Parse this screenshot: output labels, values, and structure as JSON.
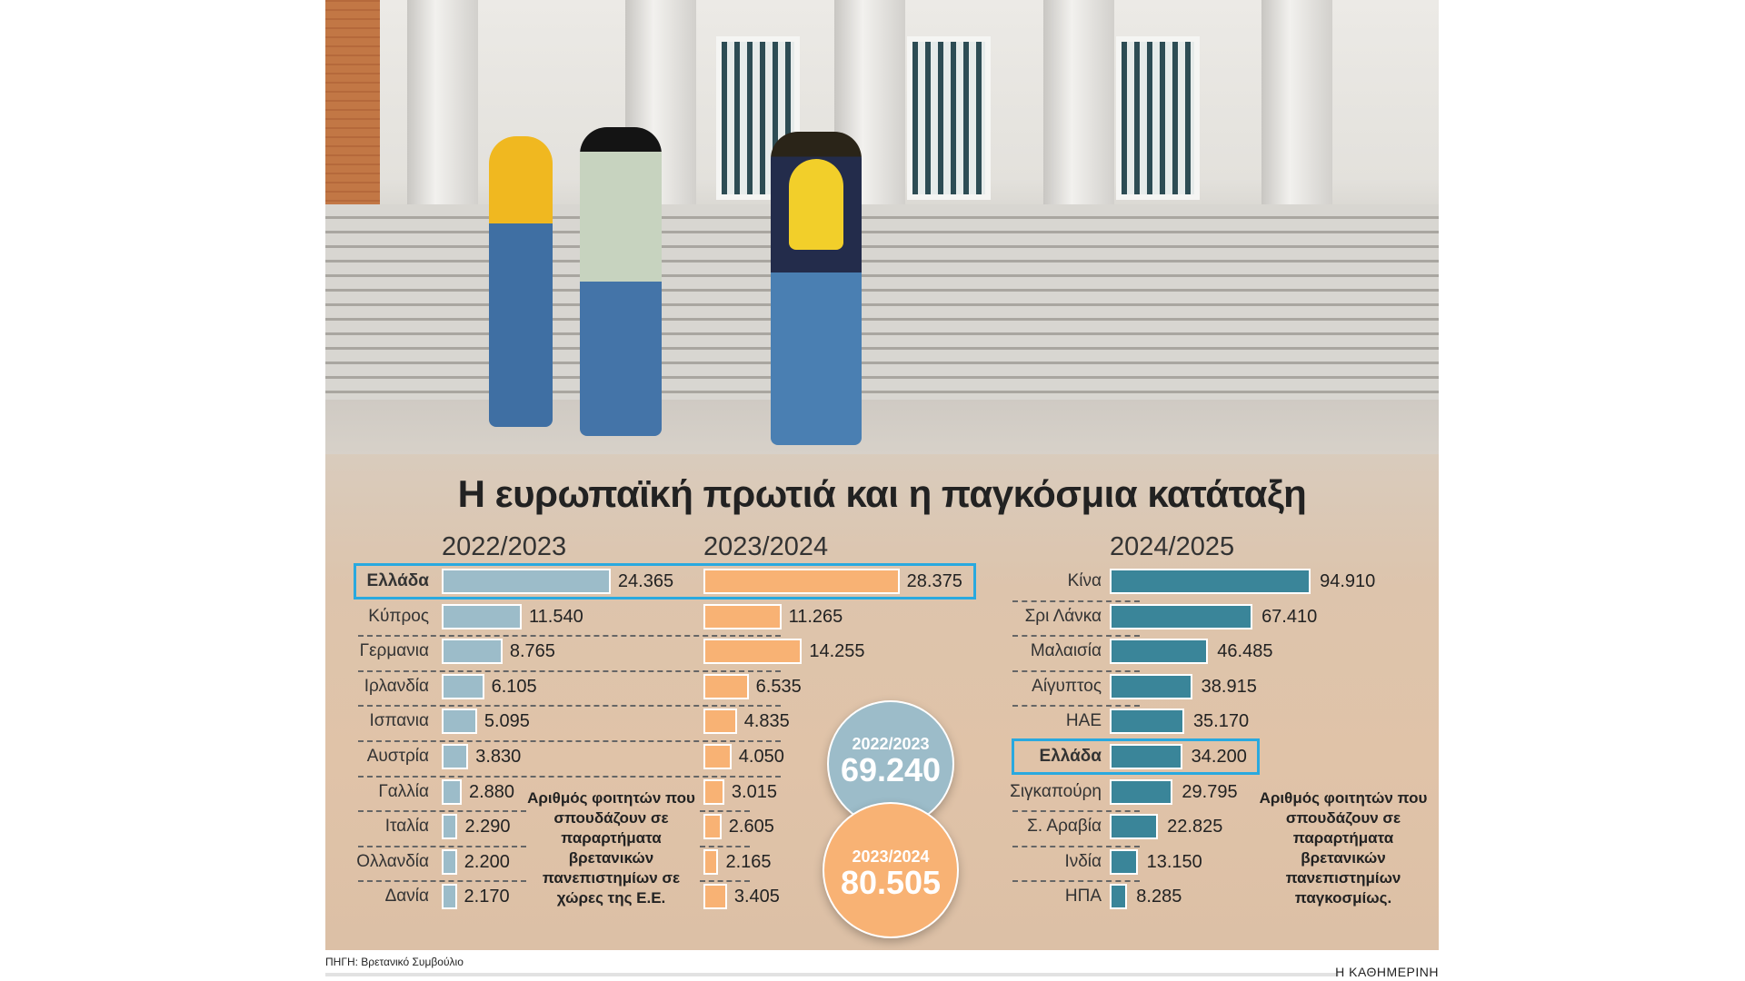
{
  "title": "Η ευρωπαϊκή πρωτιά και η παγκόσμια κατάταξη",
  "chart_data": [
    {
      "type": "bar",
      "orientation": "horizontal",
      "title": "2022/2023",
      "color": "#9cbcc9",
      "categories": [
        "Ελλάδα",
        "Κύπρος",
        "Γερμανία",
        "Ιρλανδία",
        "Ισπανία",
        "Αυστρία",
        "Γαλλία",
        "Ιταλία",
        "Ολλανδία",
        "Δανία"
      ],
      "values": [
        24365,
        11540,
        8765,
        6105,
        5095,
        3830,
        2880,
        2290,
        2200,
        2170
      ],
      "labels": [
        "24.365",
        "11.540",
        "8.765",
        "6.105",
        "5.095",
        "3.830",
        "2.880",
        "2.290",
        "2.200",
        "2.170"
      ],
      "highlight": "Ελλάδα"
    },
    {
      "type": "bar",
      "orientation": "horizontal",
      "title": "2023/2024",
      "color": "#f8b274",
      "categories": [
        "Ελλάδα",
        "Κύπρος",
        "Γερμανία",
        "Ιρλανδία",
        "Ισπανία",
        "Αυστρία",
        "Γαλλία",
        "Ιταλία",
        "Ολλανδία",
        "Δανία"
      ],
      "values": [
        28375,
        11265,
        14255,
        6535,
        4835,
        4050,
        3015,
        2605,
        2165,
        3405
      ],
      "labels": [
        "28.375",
        "11.265",
        "14.255",
        "6.535",
        "4.835",
        "4.050",
        "3.015",
        "2.605",
        "2.165",
        "3.405"
      ],
      "highlight": "Ελλάδα"
    },
    {
      "type": "bar",
      "orientation": "horizontal",
      "title": "2024/2025",
      "color": "#3a8599",
      "categories": [
        "Κίνα",
        "Σρι Λάνκα",
        "Μαλαισία",
        "Αίγυπτος",
        "ΗΑΕ",
        "Ελλάδα",
        "Σιγκαπούρη",
        "Σ. Αραβία",
        "Ινδία",
        "ΗΠΑ"
      ],
      "values": [
        94910,
        67410,
        46485,
        38915,
        35170,
        34200,
        29795,
        22825,
        13150,
        8285
      ],
      "labels": [
        "94.910",
        "67.410",
        "46.485",
        "38.915",
        "35.170",
        "34.200",
        "29.795",
        "22.825",
        "13.150",
        "8.285"
      ],
      "highlight": "Ελλάδα"
    }
  ],
  "eu_labels": [
    "Ελλάδα",
    "Κύπρος",
    "Γερμανια",
    "Ιρλανδία",
    "Ισπανια",
    "Αυστρία",
    "Γαλλία",
    "Ιταλία",
    "Ολλανδία",
    "Δανία"
  ],
  "totals": [
    {
      "period": "2022/2023",
      "value": "69.240",
      "color": "#9cbcc9"
    },
    {
      "period": "2023/2024",
      "value": "80.505",
      "color": "#f8b274"
    }
  ],
  "notes": {
    "eu": "Αριθμός φοιτητών που σπουδάζουν σε παραρτήματα βρετανικών πανεπιστημίων σε χώρες της Ε.Ε.",
    "world": "Αριθμός φοιτητών που σπουδάζουν σε παραρτήματα βρετανικών πανεπιστημίων παγκοσμίως."
  },
  "source": "ΠΗΓΗ: Βρετανικό Συμβούλιο",
  "brand": "Η ΚΑΘΗΜΕΡΙΝΗ"
}
